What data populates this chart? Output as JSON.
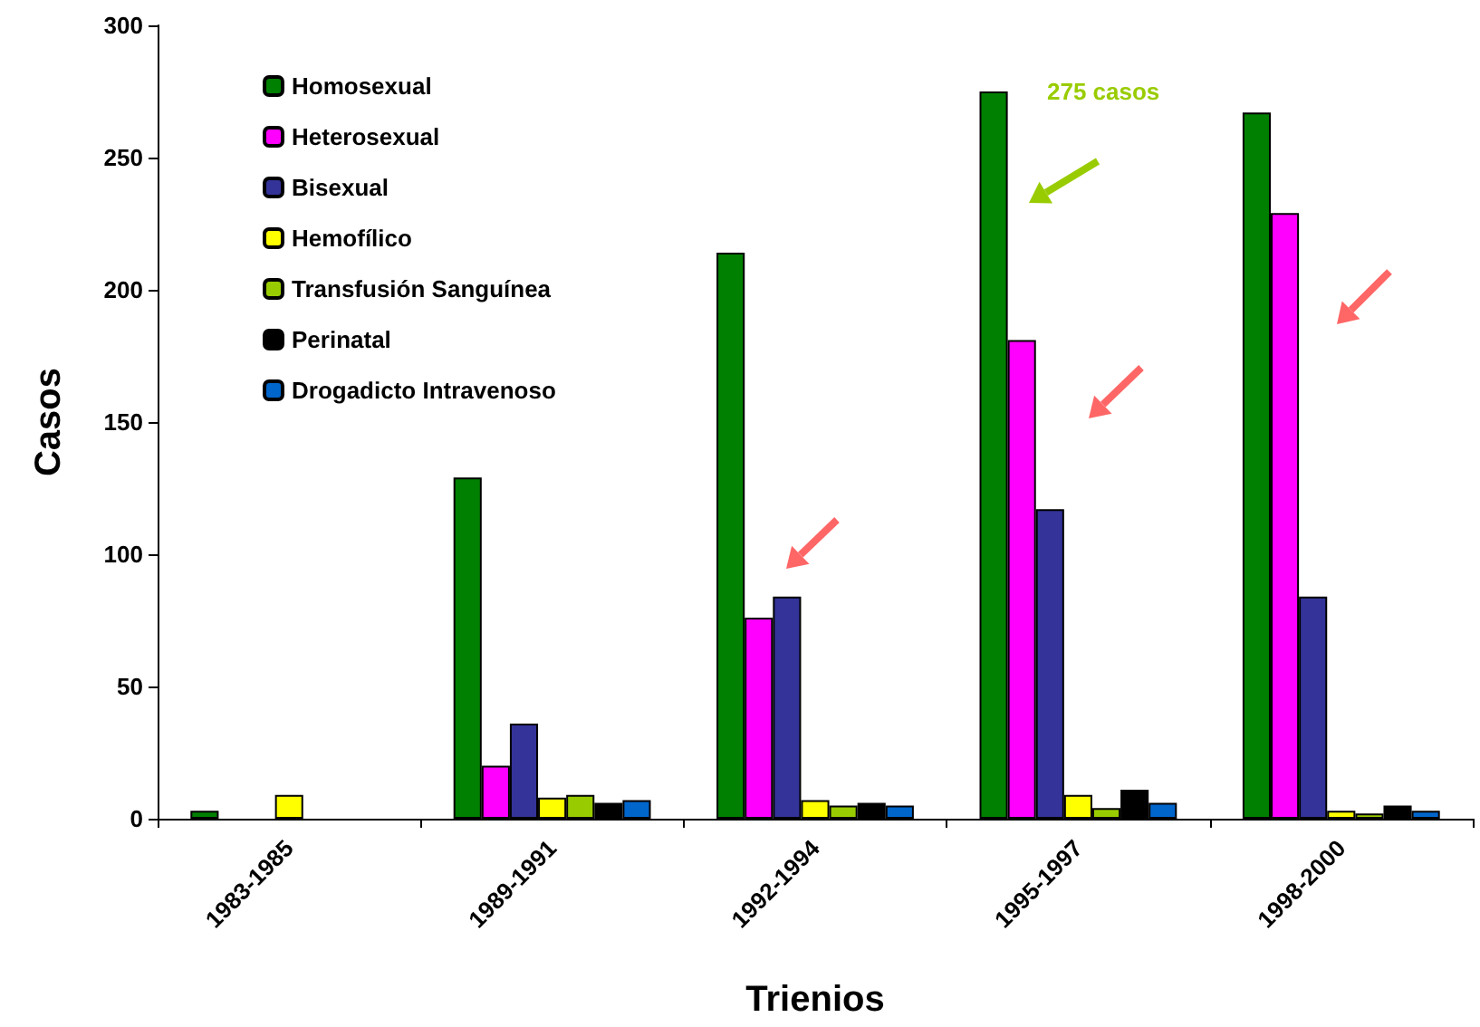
{
  "chart_data": {
    "type": "bar",
    "xlabel": "Trienios",
    "ylabel": "Casos",
    "categories": [
      "1983-1985",
      "1989-1991",
      "1992-1994",
      "1995-1997",
      "1998-2000"
    ],
    "series": [
      {
        "name": "Homosexual",
        "color": "#008000",
        "values": [
          3,
          129,
          214,
          275,
          267
        ]
      },
      {
        "name": "Heterosexual",
        "color": "#ff00ff",
        "values": [
          null,
          20,
          76,
          181,
          229
        ]
      },
      {
        "name": "Bisexual",
        "color": "#333399",
        "values": [
          null,
          36,
          84,
          117,
          84
        ]
      },
      {
        "name": "Hemofílico",
        "color": "#ffff00",
        "values": [
          9,
          8,
          7,
          9,
          3
        ]
      },
      {
        "name": "Transfusión Sanguínea",
        "color": "#99cc00",
        "values": [
          null,
          9,
          5,
          4,
          2
        ]
      },
      {
        "name": "Perinatal",
        "color": "#000000",
        "values": [
          null,
          6,
          6,
          11,
          5
        ]
      },
      {
        "name": "Drogadicto Intravenoso",
        "color": "#0066cc",
        "values": [
          null,
          7,
          5,
          6,
          3
        ]
      }
    ],
    "ylim": [
      0,
      300
    ],
    "yticks": [
      0,
      50,
      100,
      150,
      200,
      250,
      300
    ],
    "grid": false,
    "legend": "top left",
    "annotations": [
      "275 casos"
    ]
  }
}
